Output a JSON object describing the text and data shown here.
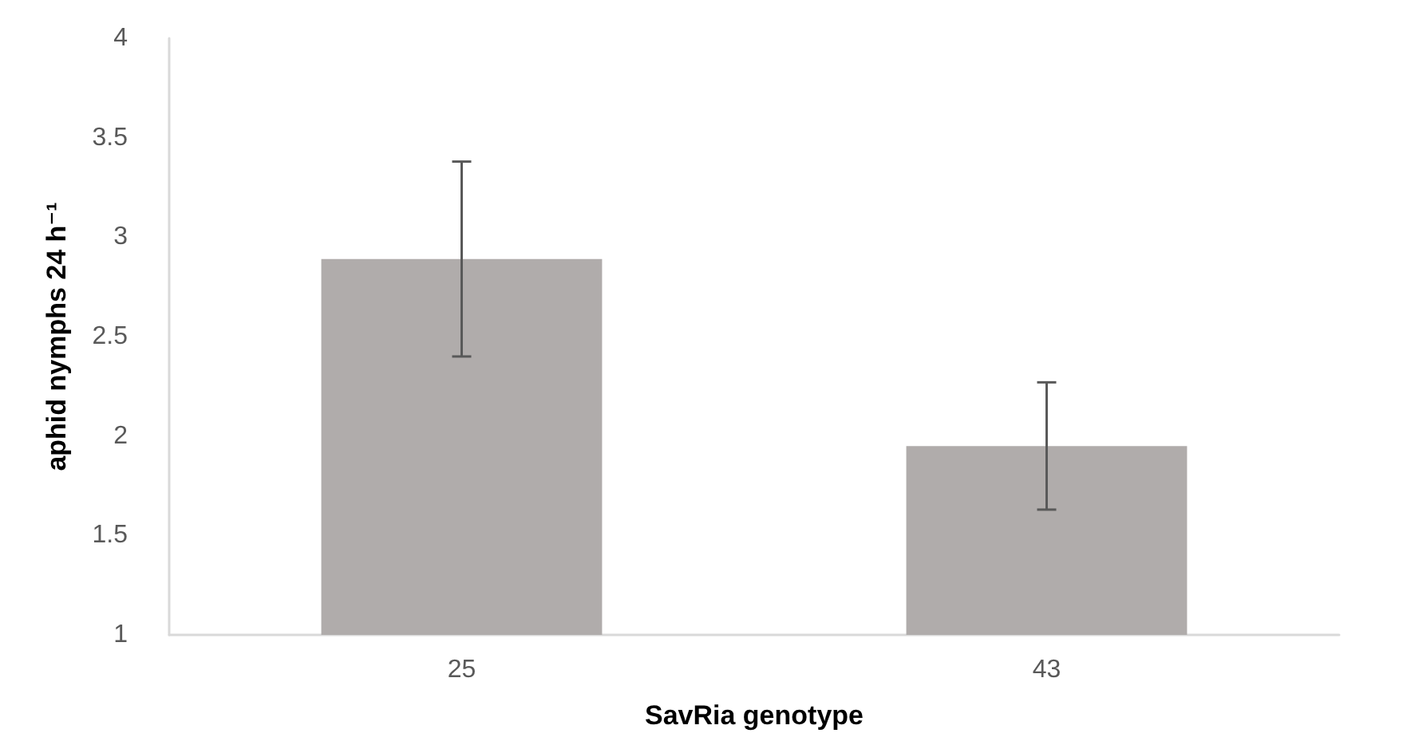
{
  "chart_data": {
    "type": "bar",
    "xlabel": "SavRia genotype",
    "ylabel": "aphid nymphs 24 h⁻¹",
    "categories": [
      "25",
      "43"
    ],
    "values": [
      2.89,
      1.95
    ],
    "errors": [
      0.49,
      0.32
    ],
    "color": "#b0acab",
    "ylim": [
      1,
      4
    ],
    "yticks": [
      1,
      1.5,
      2,
      2.5,
      3,
      3.5,
      4
    ],
    "grid": false
  }
}
